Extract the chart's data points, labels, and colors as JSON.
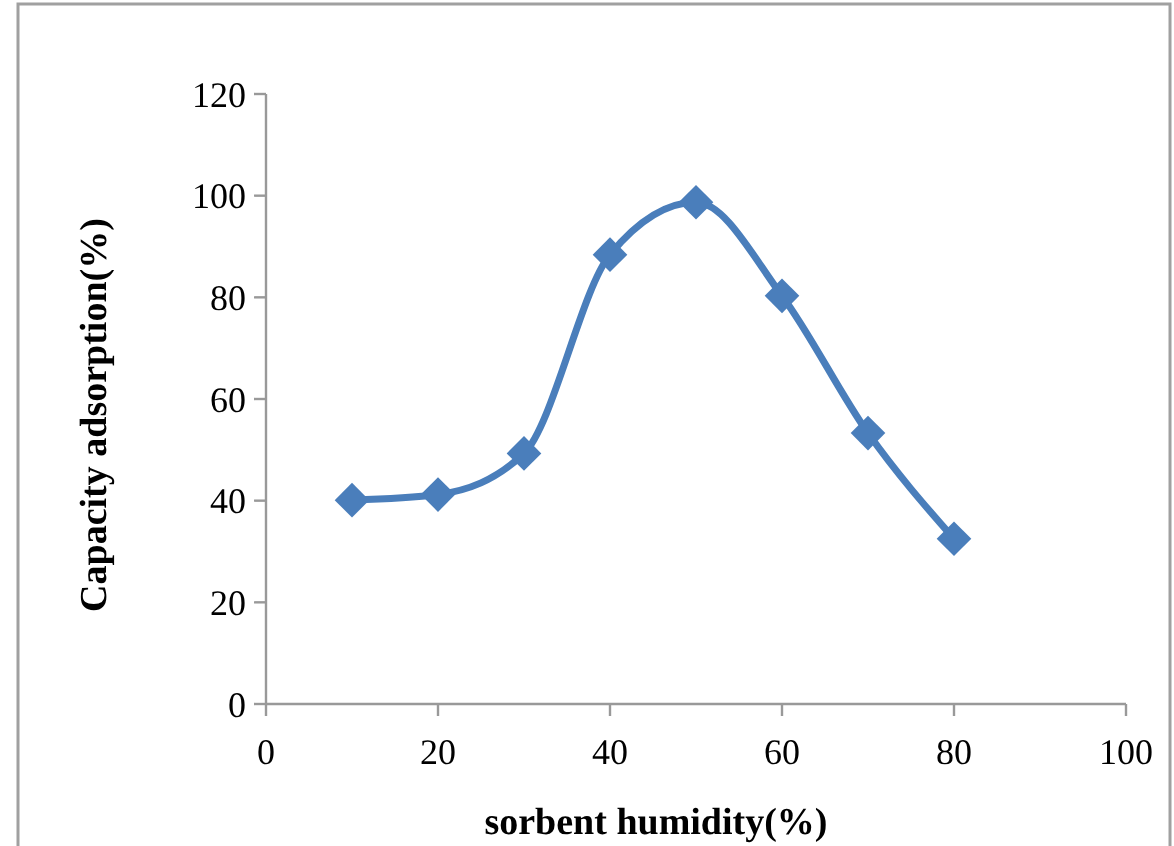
{
  "chart_data": {
    "type": "line",
    "xlabel": "sorbent humidity(%)",
    "ylabel": "Capacity adsorption(%)",
    "x": [
      10,
      20,
      30,
      40,
      50,
      60,
      70,
      80
    ],
    "series": [
      {
        "color": "#4a7ebb",
        "values": [
          40.1,
          41.2,
          49.3,
          88.4,
          98.7,
          80.3,
          53.3,
          32.5
        ]
      }
    ],
    "xlim": [
      0,
      100
    ],
    "xticks": [
      0,
      20,
      40,
      60,
      80,
      100
    ],
    "ylim": [
      0,
      120
    ],
    "yticks": [
      0,
      20,
      40,
      60,
      80,
      100,
      120
    ],
    "grid": false,
    "marker": "diamond",
    "line_style": "solid"
  }
}
